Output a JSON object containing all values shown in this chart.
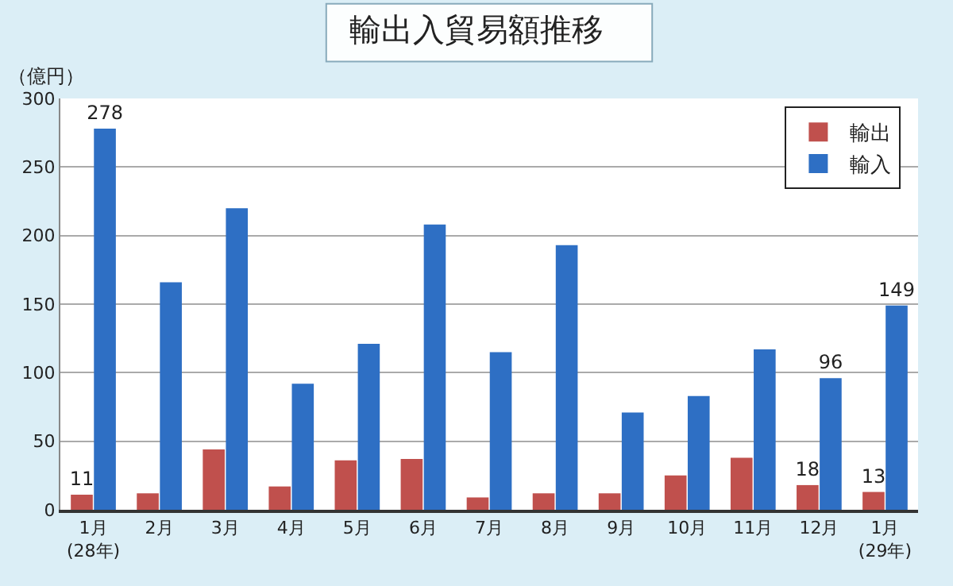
{
  "chart_data": {
    "type": "bar",
    "title": "輸出入貿易額推移",
    "ylabel": "（億円）",
    "categories": [
      "1月\n(28年)",
      "2月",
      "3月",
      "4月",
      "5月",
      "6月",
      "7月",
      "8月",
      "9月",
      "10月",
      "11月",
      "12月",
      "1月\n(29年)"
    ],
    "series": [
      {
        "name": "輸出",
        "color": "#c0504d",
        "values": [
          11,
          12,
          44,
          17,
          36,
          37,
          9,
          12,
          12,
          25,
          38,
          18,
          13
        ],
        "value_labels": [
          "11",
          null,
          null,
          null,
          null,
          null,
          null,
          null,
          null,
          null,
          null,
          "18",
          "13"
        ]
      },
      {
        "name": "輸入",
        "color": "#2e6fc4",
        "values": [
          278,
          166,
          220,
          92,
          121,
          208,
          115,
          193,
          71,
          83,
          117,
          96,
          149
        ],
        "value_labels": [
          "278",
          null,
          null,
          null,
          null,
          null,
          null,
          null,
          null,
          null,
          null,
          "96",
          "149"
        ]
      }
    ],
    "ylim": [
      0,
      300
    ],
    "yticks": [
      0,
      50,
      100,
      150,
      200,
      250,
      300
    ],
    "grid": "y",
    "legend": "top right"
  }
}
